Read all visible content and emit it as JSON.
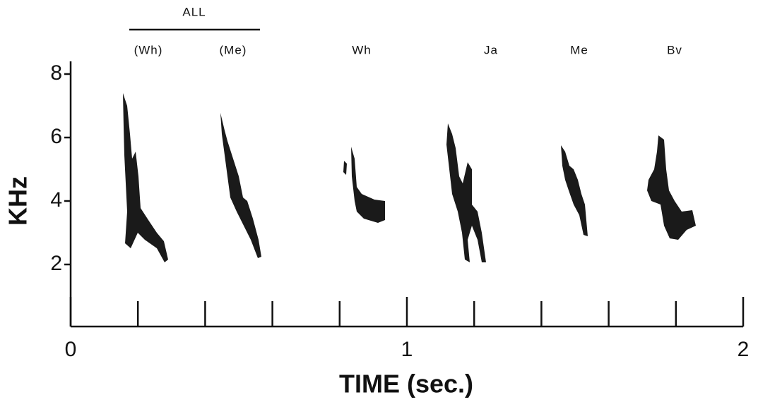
{
  "chart_data": {
    "type": "spectrogram",
    "xlabel": "TIME (sec.)",
    "ylabel": "KHz",
    "xlim": [
      0,
      2
    ],
    "ylim": [
      0,
      8.4
    ],
    "xticks": [
      0,
      1,
      2
    ],
    "xminorticks": [
      0.2,
      0.4,
      0.6,
      0.8,
      1.2,
      1.4,
      1.6,
      1.8
    ],
    "yticks": [
      2,
      4,
      6,
      8
    ],
    "group_label": "ALL",
    "call_labels": [
      "(Wh)",
      "(Me)",
      "Wh",
      "Ja",
      "Me",
      "Bv"
    ],
    "color": "#111111"
  }
}
